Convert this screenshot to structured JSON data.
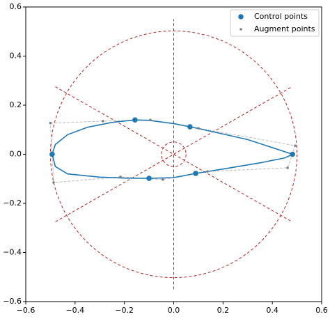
{
  "chart_data": {
    "type": "scatter",
    "xlim": [
      -0.6,
      0.6
    ],
    "ylim": [
      -0.6,
      0.6
    ],
    "xticks": [
      {
        "value": -0.6,
        "label": "−0.6"
      },
      {
        "value": -0.4,
        "label": "−0.4"
      },
      {
        "value": -0.2,
        "label": "−0.2"
      },
      {
        "value": 0,
        "label": "0.0"
      },
      {
        "value": 0.2,
        "label": "0.2"
      },
      {
        "value": 0.4,
        "label": "0.4"
      },
      {
        "value": 0.6,
        "label": "0.6"
      }
    ],
    "yticks": [
      {
        "value": -0.6,
        "label": "−0.6"
      },
      {
        "value": -0.4,
        "label": "−0.4"
      },
      {
        "value": -0.2,
        "label": "−0.2"
      },
      {
        "value": 0,
        "label": "0.0"
      },
      {
        "value": 0.2,
        "label": "0.2"
      },
      {
        "value": 0.4,
        "label": "0.4"
      },
      {
        "value": 0.6,
        "label": "0.6"
      }
    ],
    "legend": "upper right",
    "series": [
      {
        "name": "Control points",
        "color": "#1f77b4",
        "x": [
          -0.157,
          0.066,
          -0.493,
          0.482,
          -0.1,
          0.089
        ],
        "y": [
          0.14,
          0.112,
          0.0,
          0.0,
          -0.098,
          -0.078
        ]
      },
      {
        "name": "Augment points",
        "color": "#7f7f7f",
        "x": [
          -0.5,
          -0.287,
          -0.095,
          0.1,
          0.493,
          0.462,
          0.137,
          -0.044,
          -0.216,
          -0.487
        ],
        "y": [
          0.127,
          0.135,
          0.14,
          0.106,
          0.035,
          -0.055,
          -0.07,
          -0.103,
          -0.092,
          -0.115
        ]
      }
    ],
    "curve": {
      "color": "#1f77b4",
      "x": [
        0.482,
        0.3,
        0.1,
        0.0,
        -0.1,
        -0.157,
        -0.25,
        -0.35,
        -0.43,
        -0.48,
        -0.493,
        -0.48,
        -0.43,
        -0.3,
        -0.2,
        -0.1,
        0.0,
        0.089,
        0.2,
        0.35,
        0.45,
        0.482
      ],
      "y": [
        0.0,
        0.06,
        0.105,
        0.125,
        0.138,
        0.14,
        0.13,
        0.11,
        0.08,
        0.04,
        0.0,
        -0.05,
        -0.08,
        -0.093,
        -0.097,
        -0.098,
        -0.095,
        -0.078,
        -0.06,
        -0.035,
        -0.015,
        0.0
      ]
    },
    "guides": {
      "color": "#b22222",
      "circles": [
        0.5,
        0.05
      ],
      "lines": [
        {
          "x": [
            0,
            0
          ],
          "y": [
            -0.55,
            0.55
          ]
        },
        {
          "x": [
            -0.48,
            0.48
          ],
          "y": [
            0.275,
            -0.275
          ]
        },
        {
          "x": [
            -0.48,
            0.48
          ],
          "y": [
            -0.275,
            0.275
          ]
        }
      ]
    }
  }
}
